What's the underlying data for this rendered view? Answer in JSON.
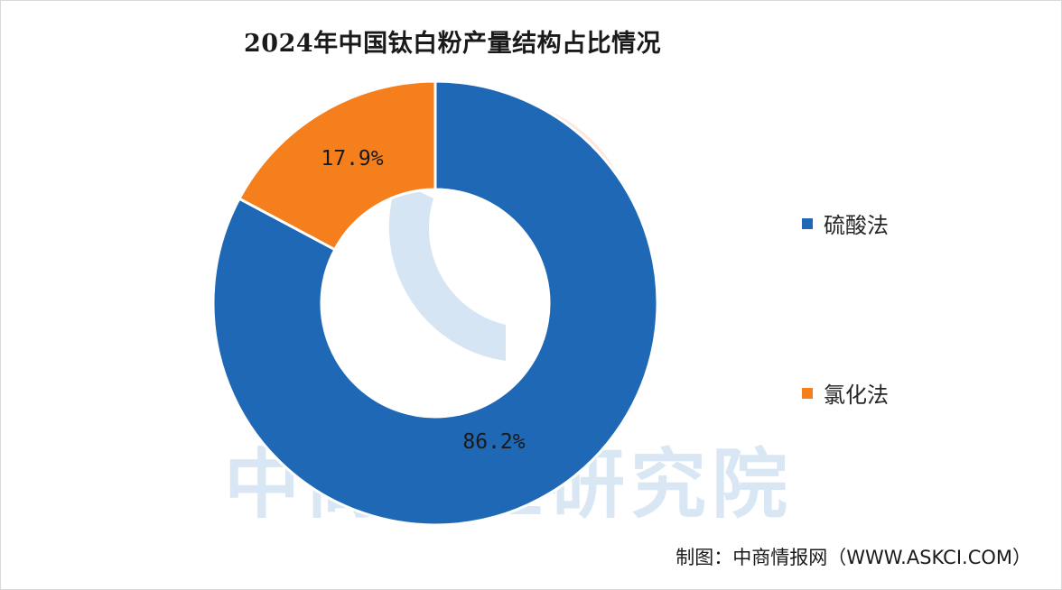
{
  "chart_data": {
    "type": "pie",
    "variant": "donut",
    "title": "2024年中国钛白粉产量结构占比情况",
    "slices": [
      {
        "name": "硫酸法",
        "value": 86.2,
        "label": "86.2%",
        "color": "#1f68b5"
      },
      {
        "name": "氯化法",
        "value": 17.9,
        "label": "17.9%",
        "color": "#f57f1d"
      }
    ],
    "legend_position": "right"
  },
  "watermark": {
    "text": "中商产业研究院"
  },
  "source": "制图：中商情报网（WWW.ASKCI.COM）"
}
